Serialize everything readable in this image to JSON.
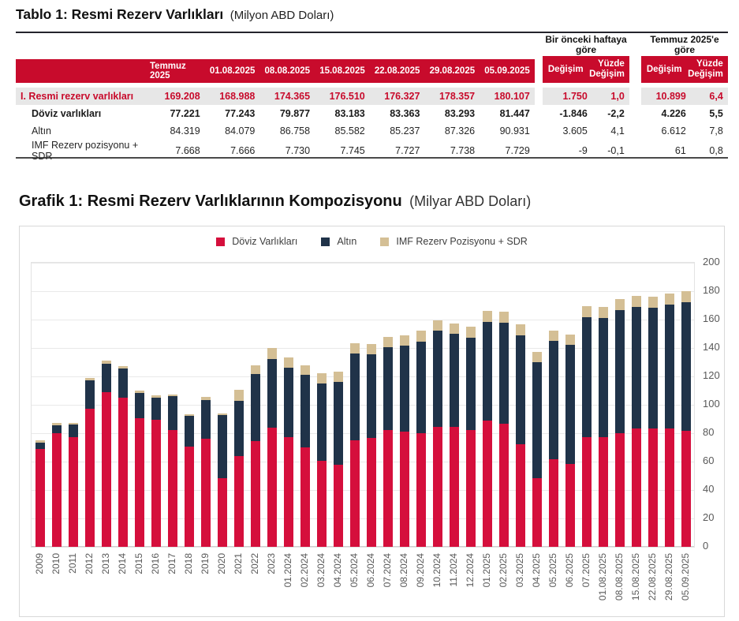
{
  "colors": {
    "table_header_red": "#c80b2c",
    "highlight_row_bg": "#e7e7e7",
    "fx_red": "#d50f3c",
    "gold_navy": "#203349",
    "imf_tan": "#d4bf95"
  },
  "table": {
    "title": "Tablo 1: Resmi Rezerv Varlıkları",
    "unit": "(Milyon ABD Doları)",
    "week_group": "Bir önceki haftaya göre",
    "july_group": "Temmuz 2025'e göre",
    "columns": [
      "Temmuz 2025",
      "01.08.2025",
      "08.08.2025",
      "15.08.2025",
      "22.08.2025",
      "29.08.2025",
      "05.09.2025"
    ],
    "change_columns": [
      "Değişim",
      "Yüzde Değişim"
    ],
    "rows": [
      {
        "label": "I. Resmi rezerv varlıkları",
        "style": "total",
        "values": [
          "169.208",
          "168.988",
          "174.365",
          "176.510",
          "176.327",
          "178.357",
          "180.107"
        ],
        "week_change": [
          "1.750",
          "1,0"
        ],
        "july_change": [
          "10.899",
          "6,4"
        ]
      },
      {
        "label": "Döviz varlıkları",
        "style": "bold",
        "values": [
          "77.221",
          "77.243",
          "79.877",
          "83.183",
          "83.363",
          "83.293",
          "81.447"
        ],
        "week_change": [
          "-1.846",
          "-2,2"
        ],
        "july_change": [
          "4.226",
          "5,5"
        ]
      },
      {
        "label": "Altın",
        "style": "normal",
        "values": [
          "84.319",
          "84.079",
          "86.758",
          "85.582",
          "85.237",
          "87.326",
          "90.931"
        ],
        "week_change": [
          "3.605",
          "4,1"
        ],
        "july_change": [
          "6.612",
          "7,8"
        ]
      },
      {
        "label": "IMF Rezerv pozisyonu + SDR",
        "style": "normal",
        "values": [
          "7.668",
          "7.666",
          "7.730",
          "7.745",
          "7.727",
          "7.738",
          "7.729"
        ],
        "week_change": [
          "-9",
          "-0,1"
        ],
        "july_change": [
          "61",
          "0,8"
        ]
      }
    ]
  },
  "chart": {
    "title": "Grafik 1: Resmi Rezerv Varlıklarının Kompozisyonu",
    "unit": "(Milyar ABD Doları)"
  },
  "chart_data": {
    "type": "bar",
    "stacked": true,
    "title": "Grafik 1: Resmi Rezerv Varlıklarının Kompozisyonu (Milyar ABD Doları)",
    "legend_position": "top",
    "grid": true,
    "ylim": [
      0,
      200
    ],
    "yticks": [
      0,
      20,
      40,
      60,
      80,
      100,
      120,
      140,
      160,
      180,
      200
    ],
    "yaxis_side": "right",
    "categories": [
      "2009",
      "2010",
      "2011",
      "2012",
      "2013",
      "2014",
      "2015",
      "2016",
      "2017",
      "2018",
      "2019",
      "2020",
      "2021",
      "2022",
      "2023",
      "01.2024",
      "02.2024",
      "03.2024",
      "04.2024",
      "05.2024",
      "06.2024",
      "07.2024",
      "08.2024",
      "09.2024",
      "10.2024",
      "11.2024",
      "12.2024",
      "01.2025",
      "02.2025",
      "03.2025",
      "04.2025",
      "05.2025",
      "06.2025",
      "07.2025",
      "01.08.2025",
      "08.08.2025",
      "15.08.2025",
      "22.08.2025",
      "29.08.2025",
      "05.09.2025"
    ],
    "series": [
      {
        "name": "Döviz Varlıkları",
        "key": "fx",
        "color": "#d50f3c",
        "values": [
          69,
          80,
          77,
          97,
          109,
          105,
          90.5,
          89.5,
          82,
          70.5,
          76,
          48.5,
          64,
          74.5,
          84,
          77,
          70,
          60.5,
          58,
          75,
          76.5,
          82.5,
          81,
          80,
          84.5,
          84.5,
          82.5,
          89,
          86.5,
          72,
          48.5,
          61.5,
          58.5,
          77.2,
          77.2,
          79.9,
          83.2,
          83.4,
          83.3,
          81.4
        ]
      },
      {
        "name": "Altın",
        "key": "gold",
        "color": "#203349",
        "values": [
          4.5,
          5.5,
          9,
          20,
          20,
          20.5,
          18,
          15.5,
          24,
          21.5,
          27.5,
          44.5,
          39,
          47,
          48.5,
          49,
          51,
          54.5,
          58,
          61,
          59,
          58,
          60.5,
          64.5,
          67.5,
          65.5,
          65,
          69.5,
          71.5,
          77,
          81.5,
          83.5,
          83.5,
          84.3,
          84.1,
          86.8,
          85.6,
          85.2,
          87.3,
          90.9
        ]
      },
      {
        "name": "IMF Rezerv Pozisyonu + SDR",
        "key": "imf",
        "color": "#d4bf95",
        "values": [
          1.5,
          1.5,
          1.5,
          2,
          2,
          1.5,
          1.5,
          1.5,
          1.5,
          1.5,
          2,
          1,
          7.5,
          6.5,
          7.5,
          7.5,
          7,
          7.5,
          7.5,
          7.5,
          7.5,
          7.5,
          7.5,
          7.5,
          7.5,
          7.5,
          7.5,
          7.5,
          7.5,
          7.5,
          7.5,
          7.5,
          7.5,
          7.7,
          7.7,
          7.7,
          7.7,
          7.7,
          7.7,
          7.7
        ]
      }
    ]
  }
}
